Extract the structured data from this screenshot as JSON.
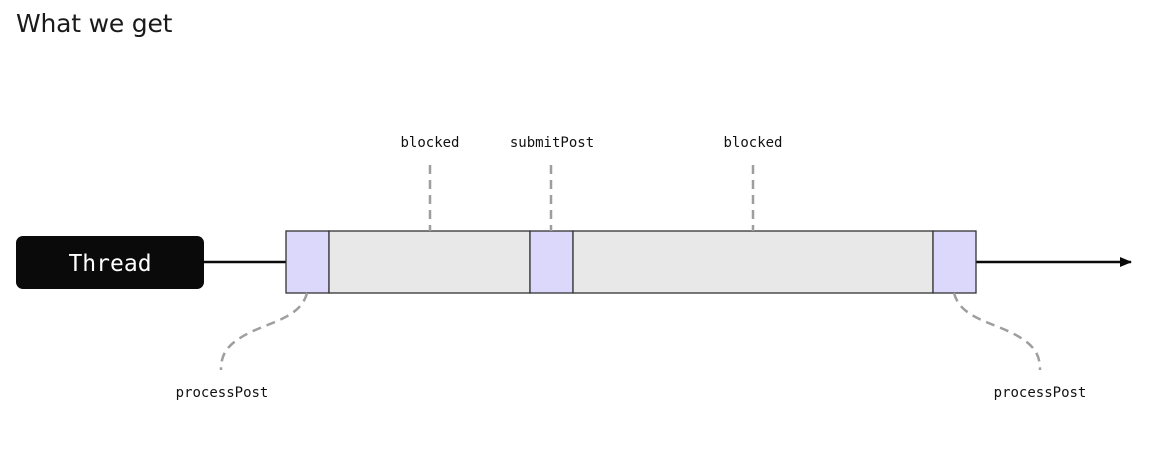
{
  "title": "What we get",
  "thread": {
    "label": "Thread"
  },
  "annotations": {
    "top": [
      "blocked",
      "submitPost",
      "blocked"
    ],
    "bottom_left": "processPost",
    "bottom_right": "processPost"
  },
  "colors": {
    "thread_box": "#0a0a0a",
    "active_segment": "#dcd8fb",
    "blocked_segment": "#e8e8e8",
    "outline": "#333333",
    "dashed_leader": "#9e9e9e"
  }
}
